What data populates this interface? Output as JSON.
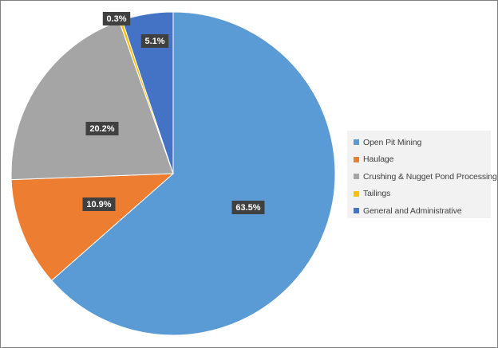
{
  "chart_data": {
    "type": "pie",
    "categories": [
      "Open Pit Mining",
      "Haulage",
      "Crushing & Nugget Pond Processing",
      "Tailings",
      "General and Administrative"
    ],
    "values": [
      63.5,
      10.9,
      20.2,
      0.3,
      5.1
    ],
    "data_labels": [
      "63.5%",
      "10.9%",
      "20.2%",
      "0.3%",
      "5.1%"
    ],
    "colors": [
      "#5b9bd5",
      "#ed7d31",
      "#a5a5a5",
      "#ffc000",
      "#4472c4"
    ],
    "legend_position": "right",
    "start_angle": "12 o'clock, clockwise"
  }
}
